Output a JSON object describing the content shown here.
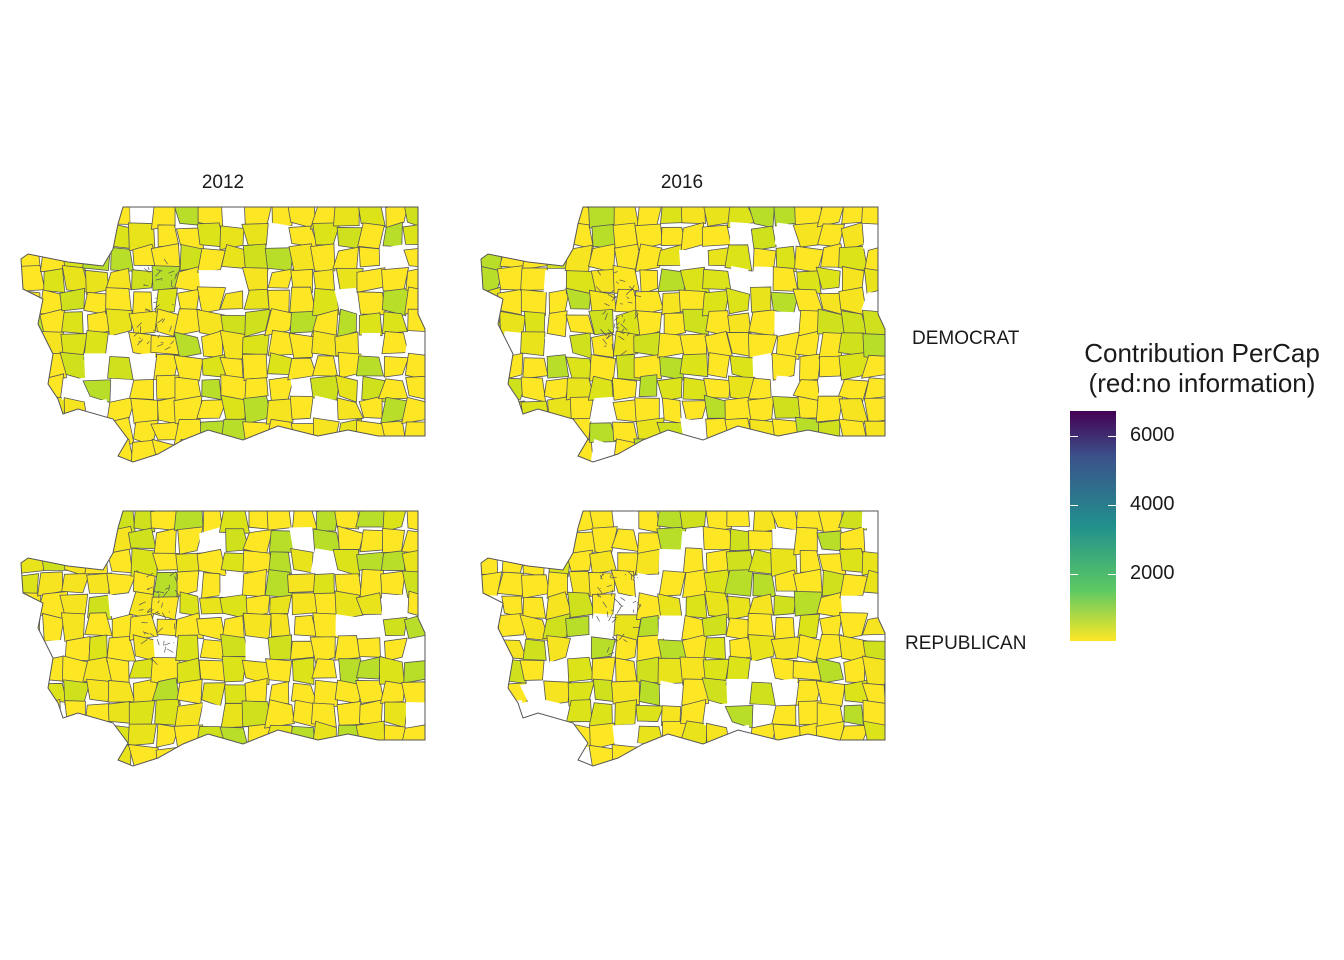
{
  "facets": {
    "columns": [
      "2012",
      "2016"
    ],
    "rows": [
      "DEMOCRAT",
      "REPUBLICAN"
    ]
  },
  "legend": {
    "title_line1": "Contribution PerCap",
    "title_line2": "(red:no information)",
    "labels": [
      "6000",
      "4000",
      "2000"
    ],
    "range": [
      0,
      6600
    ],
    "colors": {
      "high": "#440154",
      "mid": "#21908d",
      "low": "#fde725",
      "outline": "#555555"
    }
  },
  "panels": [
    {
      "year": "2012",
      "party": "DEMOCRAT"
    },
    {
      "year": "2016",
      "party": "DEMOCRAT"
    },
    {
      "year": "2012",
      "party": "REPUBLICAN"
    },
    {
      "year": "2016",
      "party": "REPUBLICAN"
    }
  ]
}
